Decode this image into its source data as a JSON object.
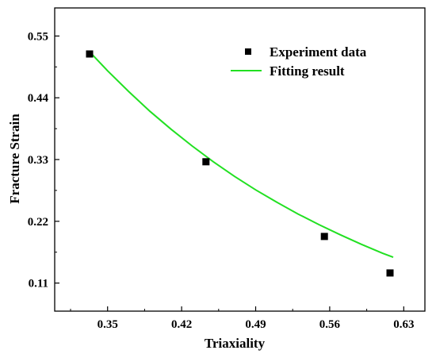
{
  "chart_data": {
    "type": "scatter",
    "xlabel": "Triaxiality",
    "ylabel": "Fracture Strain",
    "xlim": [
      0.3,
      0.65
    ],
    "ylim": [
      0.06,
      0.6
    ],
    "xticks": [
      "0.35",
      "0.42",
      "0.49",
      "0.56",
      "0.63"
    ],
    "yticks": [
      "0.11",
      "0.22",
      "0.33",
      "0.44",
      "0.55"
    ],
    "grid": false,
    "legend_position": "top-right",
    "series": [
      {
        "name": "Experiment data",
        "kind": "scatter",
        "marker": "square",
        "color": "#000000",
        "x": [
          0.333,
          0.443,
          0.555,
          0.617
        ],
        "y": [
          0.518,
          0.326,
          0.193,
          0.128
        ]
      },
      {
        "name": "Fitting result",
        "kind": "line",
        "color": "#22e022",
        "x": [
          0.333,
          0.35,
          0.37,
          0.39,
          0.41,
          0.43,
          0.45,
          0.47,
          0.49,
          0.51,
          0.53,
          0.55,
          0.57,
          0.59,
          0.61,
          0.62
        ],
        "y": [
          0.522,
          0.488,
          0.451,
          0.416,
          0.384,
          0.354,
          0.326,
          0.3,
          0.276,
          0.254,
          0.233,
          0.214,
          0.196,
          0.179,
          0.163,
          0.156
        ]
      }
    ]
  }
}
